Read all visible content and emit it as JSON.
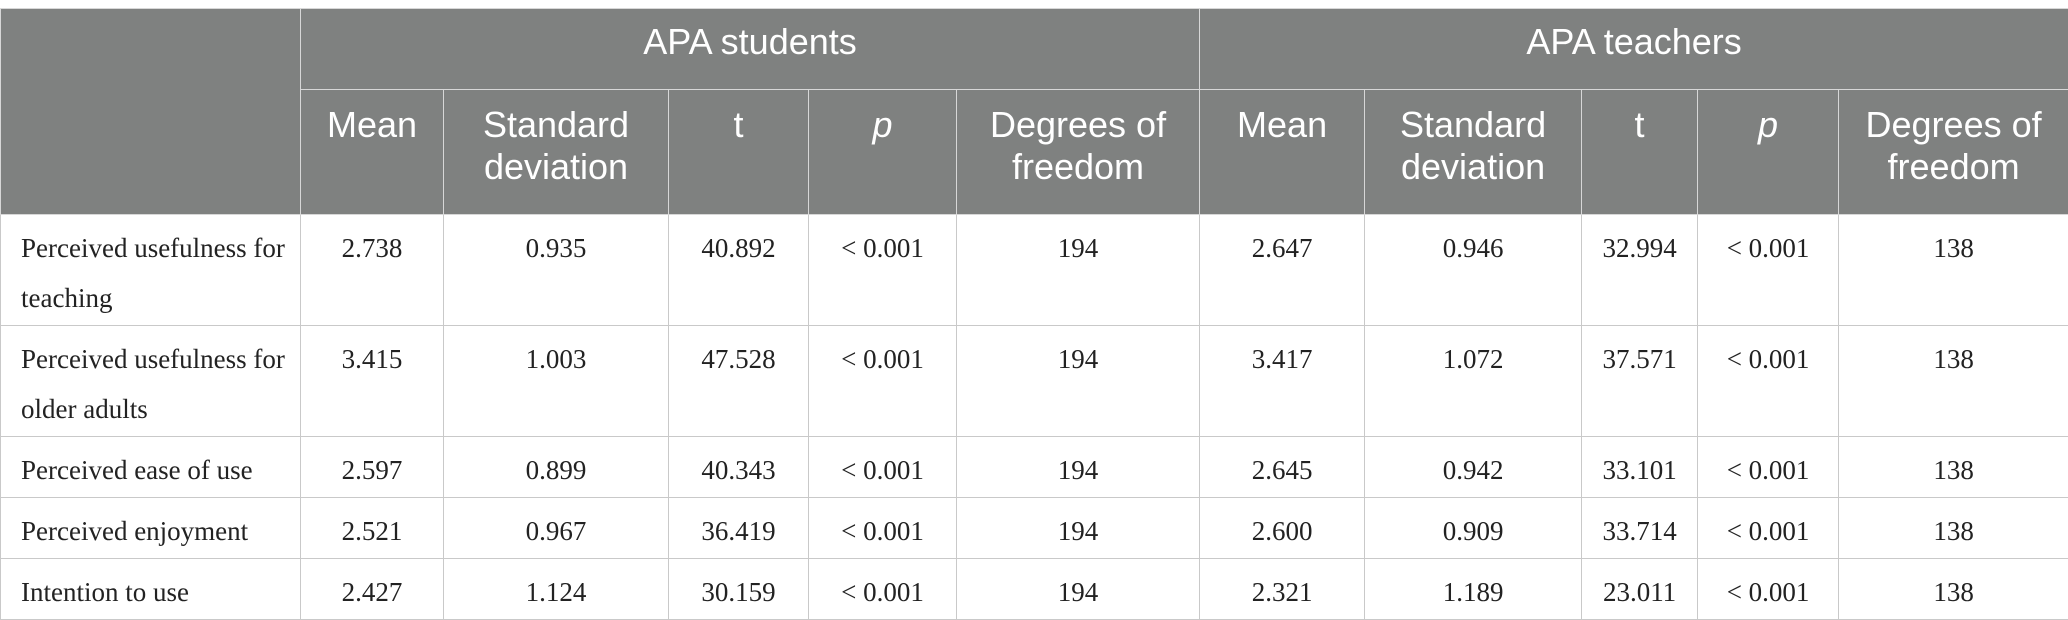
{
  "groups": {
    "students": "APA students",
    "teachers": "APA teachers"
  },
  "columns": {
    "mean": "Mean",
    "sd": "Standard deviation",
    "t": "t",
    "p": "p",
    "df": "Degrees of freedom"
  },
  "rows": [
    {
      "label": "Perceived usefulness for teaching",
      "students": {
        "mean": "2.738",
        "sd": "0.935",
        "t": "40.892",
        "p": "< 0.001",
        "df": "194"
      },
      "teachers": {
        "mean": "2.647",
        "sd": "0.946",
        "t": "32.994",
        "p": "< 0.001",
        "df": "138"
      }
    },
    {
      "label": "Perceived usefulness for older adults",
      "students": {
        "mean": "3.415",
        "sd": "1.003",
        "t": "47.528",
        "p": "< 0.001",
        "df": "194"
      },
      "teachers": {
        "mean": "3.417",
        "sd": "1.072",
        "t": "37.571",
        "p": "< 0.001",
        "df": "138"
      }
    },
    {
      "label": "Perceived ease of use",
      "students": {
        "mean": "2.597",
        "sd": "0.899",
        "t": "40.343",
        "p": "< 0.001",
        "df": "194"
      },
      "teachers": {
        "mean": "2.645",
        "sd": "0.942",
        "t": "33.101",
        "p": "< 0.001",
        "df": "138"
      }
    },
    {
      "label": "Perceived enjoyment",
      "students": {
        "mean": "2.521",
        "sd": "0.967",
        "t": "36.419",
        "p": "< 0.001",
        "df": "194"
      },
      "teachers": {
        "mean": "2.600",
        "sd": "0.909",
        "t": "33.714",
        "p": "< 0.001",
        "df": "138"
      }
    },
    {
      "label": "Intention to use",
      "students": {
        "mean": "2.427",
        "sd": "1.124",
        "t": "30.159",
        "p": "< 0.001",
        "df": "194"
      },
      "teachers": {
        "mean": "2.321",
        "sd": "1.189",
        "t": "23.011",
        "p": "< 0.001",
        "df": "138"
      }
    }
  ]
}
